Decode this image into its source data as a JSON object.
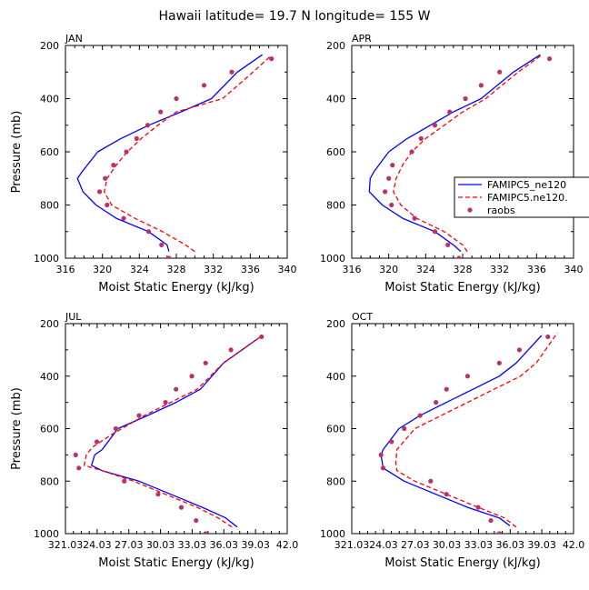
{
  "figure": {
    "title": "Hawaii  latitude= 19.7 N longitude= 155 W"
  },
  "legend": {
    "position": "right",
    "entries": [
      {
        "label": "FAMIPC5_ne120",
        "color": "#0000ff",
        "style": "solid"
      },
      {
        "label": "FAMIPC5.ne120.",
        "color": "#ff0000",
        "style": "dashed"
      },
      {
        "label": "raobs",
        "color": "#b8336a",
        "style": "marker"
      }
    ]
  },
  "chart_data": [
    {
      "type": "line",
      "panel": "JAN",
      "xlabel": "Moist Static Energy (kJ/kg)",
      "ylabel": "Pressure (mb)",
      "xlim": [
        316,
        340
      ],
      "ylim": [
        1000,
        200
      ],
      "xticks": [
        "316",
        "320",
        "324",
        "328",
        "332",
        "336",
        "340"
      ],
      "yticks": [
        "200",
        "400",
        "600",
        "800",
        "1000"
      ],
      "series": [
        {
          "name": "FAMIPC5_ne120",
          "color": "#0000ff",
          "style": "solid",
          "x": [
            327.2,
            327.0,
            325.0,
            321.5,
            319.3,
            317.9,
            317.3,
            317.8,
            319.5,
            322.0,
            325.0,
            328.5,
            331.8,
            334.6,
            337.3
          ],
          "y": [
            975,
            950,
            900,
            850,
            800,
            750,
            700,
            675,
            600,
            550,
            500,
            450,
            400,
            300,
            235
          ]
        },
        {
          "name": "FAMIPC5.ne120.",
          "color": "#ff0000",
          "style": "dashed",
          "x": [
            330.0,
            329.0,
            326.5,
            323.5,
            321.0,
            320.2,
            320.5,
            321.5,
            322.7,
            324.2,
            326.0,
            328.0,
            333.0,
            336.3,
            338.2
          ],
          "y": [
            975,
            950,
            900,
            850,
            800,
            750,
            700,
            650,
            600,
            550,
            500,
            450,
            400,
            300,
            240
          ]
        },
        {
          "name": "raobs",
          "color": "#b8336a",
          "style": "marker",
          "x": [
            327.2,
            326.4,
            325.0,
            322.3,
            320.5,
            319.7,
            320.3,
            321.2,
            322.6,
            323.7,
            324.9,
            326.3,
            328.0,
            331.0,
            334.0,
            338.3
          ],
          "y": [
            1000,
            950,
            900,
            850,
            800,
            750,
            700,
            650,
            600,
            550,
            500,
            450,
            400,
            350,
            300,
            250
          ]
        }
      ]
    },
    {
      "type": "line",
      "panel": "APR",
      "xlabel": "Moist Static Energy (kJ/kg)",
      "ylabel": "Pressure (mb)",
      "xlim": [
        316,
        340
      ],
      "ylim": [
        1000,
        200
      ],
      "xticks": [
        "316",
        "320",
        "324",
        "328",
        "332",
        "336",
        "340"
      ],
      "yticks": [
        "200",
        "400",
        "600",
        "800",
        "1000"
      ],
      "series": [
        {
          "name": "FAMIPC5_ne120",
          "color": "#0000ff",
          "style": "solid",
          "x": [
            327.8,
            327.0,
            325.0,
            321.5,
            319.3,
            317.9,
            318.0,
            318.4,
            320.0,
            322.0,
            324.5,
            327.0,
            330.0,
            333.5,
            336.4
          ],
          "y": [
            975,
            950,
            900,
            850,
            800,
            750,
            700,
            675,
            600,
            550,
            500,
            450,
            400,
            300,
            235
          ]
        },
        {
          "name": "FAMIPC5.ne120.",
          "color": "#ff0000",
          "style": "dashed",
          "x": [
            328.5,
            328.0,
            326.0,
            323.0,
            321.3,
            320.5,
            320.8,
            321.5,
            322.5,
            324.0,
            326.0,
            328.0,
            330.5,
            334.0,
            336.6
          ],
          "y": [
            975,
            950,
            900,
            850,
            800,
            750,
            700,
            650,
            600,
            550,
            500,
            450,
            400,
            300,
            235
          ]
        },
        {
          "name": "raobs",
          "color": "#b8336a",
          "style": "marker",
          "x": [
            327.6,
            326.4,
            325.0,
            322.8,
            320.3,
            319.6,
            320.0,
            320.4,
            322.5,
            323.5,
            325.0,
            326.6,
            328.3,
            330.0,
            332.0,
            337.4
          ],
          "y": [
            1000,
            950,
            900,
            850,
            800,
            750,
            700,
            650,
            600,
            550,
            500,
            450,
            400,
            350,
            300,
            250
          ]
        }
      ]
    },
    {
      "type": "line",
      "panel": "JUL",
      "xlabel": "Moist Static Energy (kJ/kg)",
      "ylabel": "Pressure (mb)",
      "xlim": [
        321.03,
        342.03
      ],
      "ylim": [
        1000,
        200
      ],
      "xticks": [
        "321.03",
        "24.03",
        "27.03",
        "30.03",
        "33.03",
        "36.03",
        "39.03",
        "42.0"
      ],
      "yticks": [
        "200",
        "400",
        "600",
        "800",
        "1000"
      ],
      "series": [
        {
          "name": "FAMIPC5_ne120",
          "color": "#0000ff",
          "style": "solid",
          "x": [
            337.3,
            336.2,
            334.0,
            331.0,
            328.0,
            324.5,
            323.5,
            323.8,
            324.5,
            326.0,
            328.8,
            331.5,
            333.8,
            336.0,
            339.5
          ],
          "y": [
            975,
            940,
            900,
            850,
            800,
            760,
            740,
            700,
            680,
            600,
            550,
            500,
            450,
            350,
            250
          ]
        },
        {
          "name": "FAMIPC5.ne120.",
          "color": "#ff0000",
          "style": "dashed",
          "x": [
            336.8,
            335.5,
            333.5,
            330.5,
            327.5,
            324.5,
            322.8,
            323.0,
            323.6,
            325.5,
            328.5,
            331.0,
            333.5,
            336.0,
            339.5
          ],
          "y": [
            975,
            940,
            900,
            850,
            800,
            760,
            740,
            700,
            670,
            620,
            550,
            500,
            450,
            350,
            250
          ]
        },
        {
          "name": "raobs",
          "color": "#b8336a",
          "style": "marker",
          "x": [
            334.3,
            333.4,
            332.0,
            329.8,
            326.6,
            322.3,
            322.0,
            324.0,
            325.8,
            328.0,
            330.5,
            331.5,
            333.0,
            334.3,
            336.7,
            339.6
          ],
          "y": [
            1000,
            950,
            900,
            850,
            800,
            750,
            700,
            650,
            600,
            550,
            500,
            450,
            400,
            350,
            300,
            250
          ]
        }
      ]
    },
    {
      "type": "line",
      "panel": "OCT",
      "xlabel": "Moist Static Energy (kJ/kg)",
      "ylabel": "Pressure (mb)",
      "xlim": [
        321.03,
        342.03
      ],
      "ylim": [
        1000,
        200
      ],
      "xticks": [
        "321.03",
        "24.03",
        "27.03",
        "30.03",
        "33.03",
        "36.03",
        "39.03",
        "42.0"
      ],
      "yticks": [
        "200",
        "400",
        "600",
        "800",
        "1000"
      ],
      "series": [
        {
          "name": "FAMIPC5_ne120",
          "color": "#0000ff",
          "style": "solid",
          "x": [
            336.0,
            335.0,
            332.0,
            329.0,
            326.0,
            324.0,
            323.8,
            324.0,
            325.5,
            327.5,
            330.0,
            332.5,
            335.0,
            336.6,
            339.0
          ],
          "y": [
            970,
            940,
            900,
            850,
            800,
            750,
            700,
            680,
            600,
            550,
            500,
            450,
            400,
            350,
            245
          ]
        },
        {
          "name": "FAMIPC5.ne120.",
          "color": "#ff0000",
          "style": "dashed",
          "x": [
            336.6,
            335.5,
            333.0,
            330.0,
            327.0,
            325.3,
            325.2,
            325.3,
            327.0,
            329.5,
            332.0,
            334.5,
            337.0,
            338.5,
            340.5
          ],
          "y": [
            975,
            940,
            900,
            850,
            800,
            760,
            730,
            680,
            600,
            550,
            500,
            450,
            400,
            350,
            235
          ]
        },
        {
          "name": "raobs",
          "color": "#b8336a",
          "style": "marker",
          "x": [
            335.0,
            334.2,
            333.0,
            330.0,
            328.5,
            324.0,
            323.8,
            324.8,
            326.0,
            327.5,
            329.0,
            330.0,
            332.0,
            335.0,
            336.9,
            339.6
          ],
          "y": [
            1000,
            950,
            900,
            850,
            800,
            750,
            700,
            650,
            600,
            550,
            500,
            450,
            400,
            350,
            300,
            250
          ]
        }
      ]
    }
  ]
}
